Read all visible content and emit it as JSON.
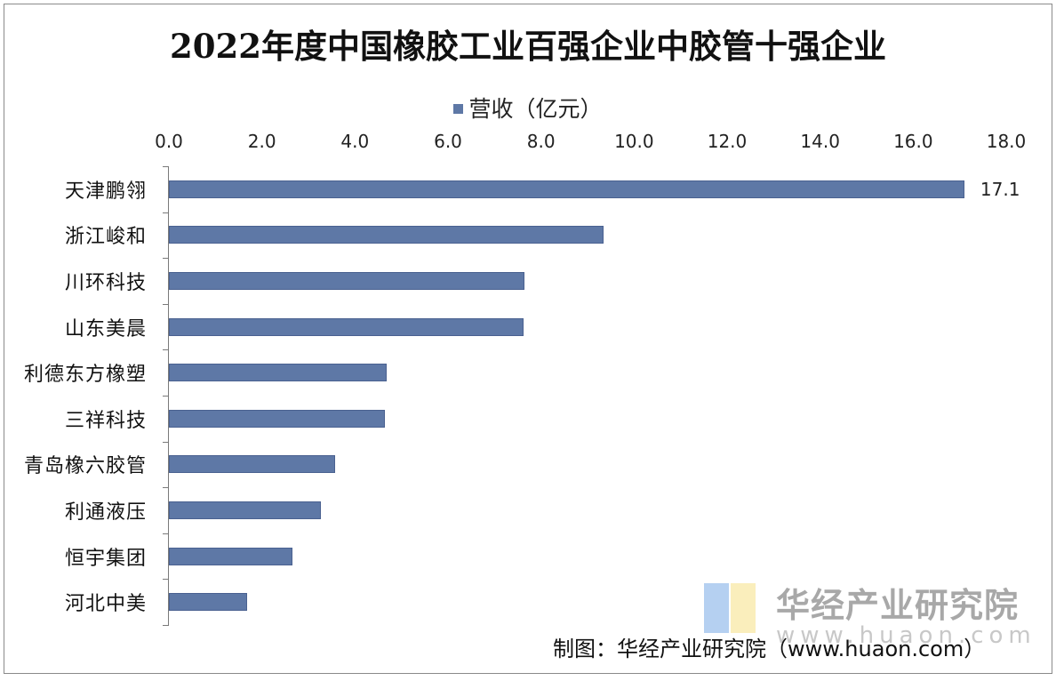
{
  "chart_data": {
    "type": "bar",
    "orientation": "horizontal",
    "title": "2022年度中国橡胶工业百强企业中胶管十强企业",
    "legend": [
      "营收（亿元）"
    ],
    "legend_position": "top",
    "xlabel": "",
    "ylabel": "",
    "xlim": [
      0,
      18
    ],
    "x_ticks": [
      "0.0",
      "2.0",
      "4.0",
      "6.0",
      "8.0",
      "10.0",
      "12.0",
      "14.0",
      "16.0",
      "18.0"
    ],
    "x_axis_position": "top",
    "grid": false,
    "categories": [
      "天津鹏翎",
      "浙江峻和",
      "川环科技",
      "山东美晨",
      "利德东方橡塑",
      "三祥科技",
      "青岛橡六胶管",
      "利通液压",
      "恒宇集团",
      "河北中美"
    ],
    "series": [
      {
        "name": "营收（亿元）",
        "color": "#5e78a6",
        "values": [
          17.1,
          9.35,
          7.65,
          7.62,
          4.69,
          4.65,
          3.58,
          3.27,
          2.66,
          1.68
        ]
      }
    ],
    "data_labels": [
      {
        "category": "天津鹏翎",
        "label": "17.1"
      }
    ]
  },
  "watermark": {
    "name": "华经产业研究院",
    "url": "www.huaon.com"
  },
  "source": "制图：华经产业研究院（www.huaon.com）"
}
